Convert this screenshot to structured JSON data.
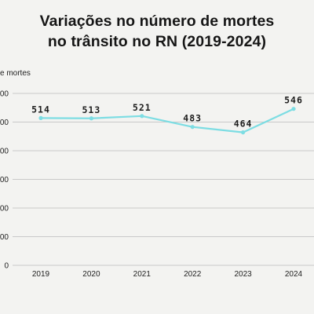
{
  "chart_data": {
    "type": "line",
    "title_lines": [
      "Variações no número de mortes",
      "no trânsito no RN (2019-2024)"
    ],
    "ylabel": "e mortes",
    "xlabel": "",
    "categories": [
      "2019",
      "2020",
      "2021",
      "2022",
      "2023",
      "2024"
    ],
    "values": [
      514,
      513,
      521,
      483,
      464,
      546
    ],
    "y_tick_labels": [
      "0",
      "00",
      "00",
      "00",
      "00",
      "00",
      "00"
    ],
    "y_tick_values": [
      0,
      100,
      200,
      300,
      400,
      500,
      600
    ],
    "ylim": [
      0,
      600
    ],
    "grid": true,
    "line_color": "#7ddde3",
    "grid_color": "#c9c9c9"
  }
}
